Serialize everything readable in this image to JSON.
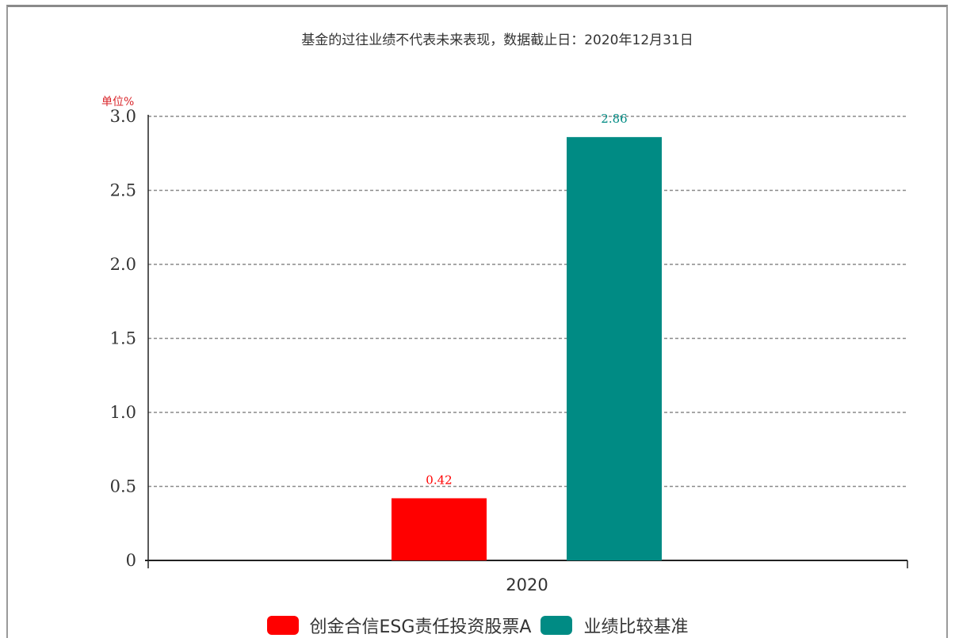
{
  "subtitle": "基金的过往业绩不代表未来表现，数据截止日：2020年12月31日",
  "unit_label": "单位%",
  "colors": {
    "fund": "#ff0000",
    "benchmark": "#008b84",
    "grid": "#8a8a8a",
    "axis": "#222222"
  },
  "chart_data": {
    "type": "bar",
    "title": "",
    "categories": [
      "2020"
    ],
    "series": [
      {
        "name": "创金合信ESG责任投资股票A",
        "values": [
          0.42
        ]
      },
      {
        "name": "业绩比较基准",
        "values": [
          2.86
        ]
      }
    ],
    "ylim": [
      0,
      3.0
    ],
    "yticks": [
      0,
      0.5,
      1.0,
      1.5,
      2.0,
      2.5,
      3.0
    ],
    "ytick_labels": [
      "0",
      "0.5",
      "1.0",
      "1.5",
      "2.0",
      "2.5",
      "3.0"
    ],
    "data_labels": [
      "0.42",
      "2.86"
    ],
    "grid": true,
    "legend_position": "bottom"
  }
}
